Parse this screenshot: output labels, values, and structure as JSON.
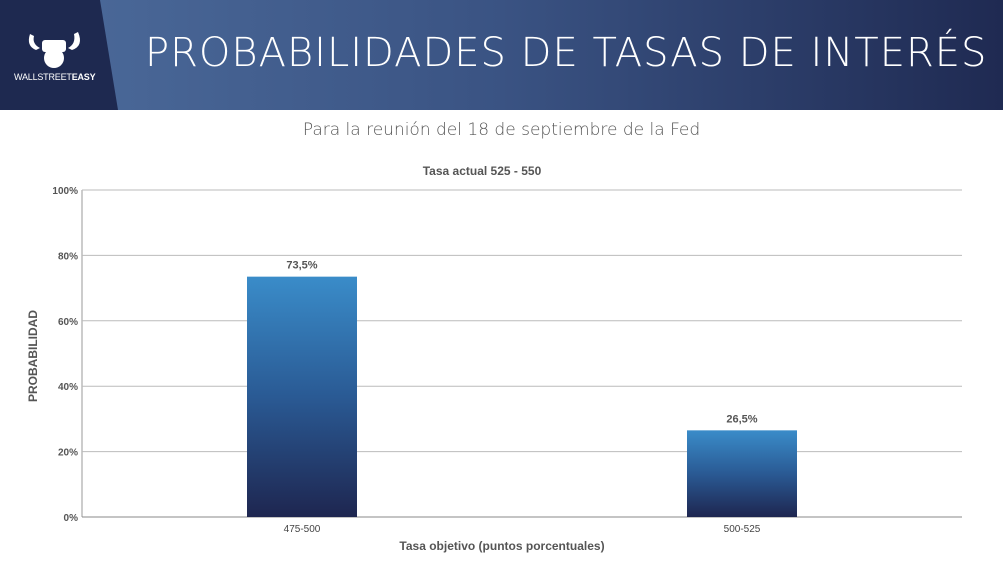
{
  "header": {
    "title": "PROBABILIDADES DE TASAS DE INTERÉS",
    "logo_text": "WALLSTREETEASY",
    "logo_text_a": "WALLSTREET",
    "logo_text_b": "EASY"
  },
  "subtitle": "Para la reunión del 18 de septiembre de la Fed",
  "colors": {
    "header_dark": "#1e2950",
    "bar_top": "#3a8cc9",
    "bar_bottom": "#1e2650"
  },
  "chart_data": {
    "type": "bar",
    "title": "Tasa actual 525 - 550",
    "xlabel": "Tasa objetivo (puntos porcentuales)",
    "ylabel": "PROBABILIDAD",
    "categories": [
      "475-500",
      "500-525"
    ],
    "values": [
      73.5,
      26.5
    ],
    "data_labels": [
      "73,5%",
      "26,5%"
    ],
    "ylim": [
      0,
      100
    ],
    "yticks": [
      0,
      20,
      40,
      60,
      80,
      100
    ],
    "ytick_labels": [
      "0%",
      "20%",
      "40%",
      "60%",
      "80%",
      "100%"
    ],
    "grid": true
  }
}
